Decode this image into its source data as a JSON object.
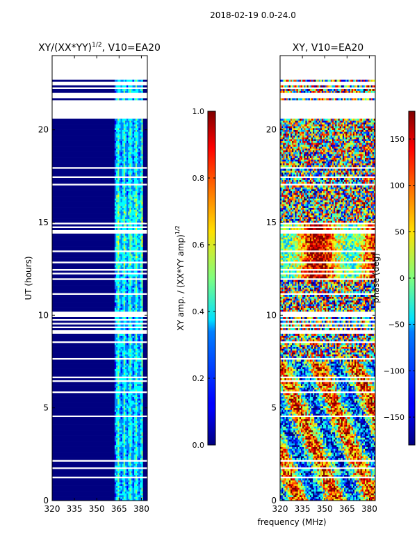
{
  "suptitle": "2018-02-19 0.0-24.0",
  "chart_data": [
    {
      "type": "heatmap",
      "title_text": "XY/(XX*YY)",
      "title_exponent": "1/2",
      "title_suffix": ", V10=EA20",
      "xlabel": "",
      "ylabel": "UT (hours)",
      "xlim": [
        320,
        384
      ],
      "ylim": [
        0,
        24
      ],
      "xticks": [
        320,
        335,
        350,
        365,
        380
      ],
      "yticks": [
        0,
        5,
        10,
        15,
        20
      ],
      "colorbar": {
        "label_text": "XY amp. / (XX*YY amp)",
        "label_exponent": "1/2",
        "range": [
          0.0,
          1.0
        ],
        "ticks": [
          "0.0",
          "0.2",
          "0.4",
          "0.6",
          "0.8",
          "1.0"
        ],
        "tick_values": [
          0.0,
          0.2,
          0.4,
          0.6,
          0.8,
          1.0
        ]
      }
    },
    {
      "type": "heatmap",
      "title_text": "XY, V10=EA20",
      "xlabel": "frequency (MHz)",
      "ylabel": "",
      "xlim": [
        320,
        384
      ],
      "ylim": [
        0,
        24
      ],
      "xticks": [
        320,
        335,
        350,
        365,
        380
      ],
      "yticks": [
        0,
        5,
        10,
        15,
        20
      ],
      "colorbar": {
        "label_text": "phase (deg)",
        "range": [
          -180,
          180
        ],
        "ticks": [
          "150",
          "100",
          "50",
          "0",
          "−50",
          "−100",
          "−150"
        ],
        "tick_values": [
          150,
          100,
          50,
          0,
          -50,
          -100,
          -150
        ]
      }
    }
  ]
}
